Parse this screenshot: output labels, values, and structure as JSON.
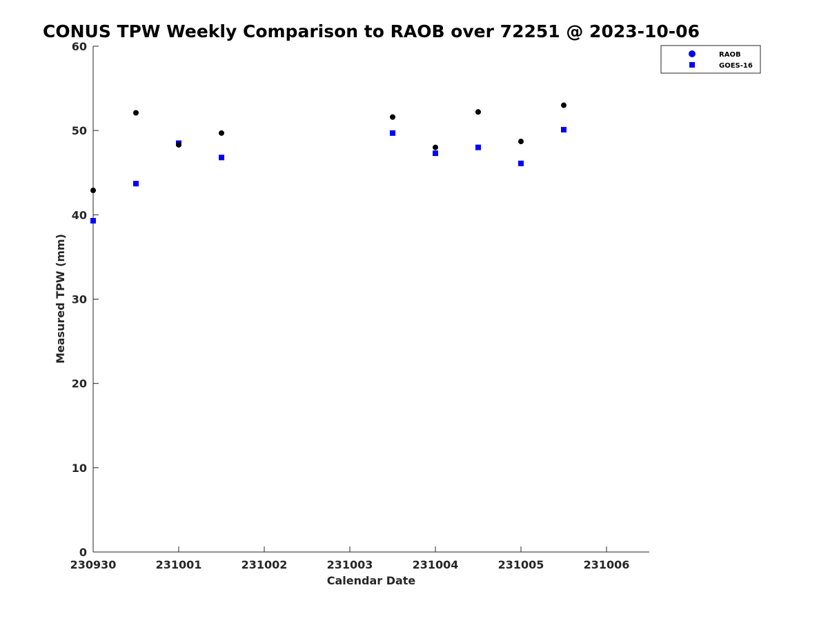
{
  "chart_data": {
    "type": "scatter",
    "title": "CONUS TPW Weekly Comparison to RAOB over 72251 @ 2023-10-06",
    "xlabel": "Calendar Date",
    "ylabel": "Measured TPW (mm)",
    "xlim": [
      0,
      6.5
    ],
    "ylim": [
      0,
      60
    ],
    "x_ticks": [
      0,
      1,
      2,
      3,
      4,
      5,
      6
    ],
    "x_tick_labels": [
      "230930",
      "231001",
      "231002",
      "231003",
      "231004",
      "231005",
      "231006"
    ],
    "y_ticks": [
      0,
      10,
      20,
      30,
      40,
      50,
      60
    ],
    "y_tick_labels": [
      "0",
      "10",
      "20",
      "30",
      "40",
      "50",
      "60"
    ],
    "grid": false,
    "legend_position": "top-right",
    "series": [
      {
        "name": "RAOB",
        "marker": "circle",
        "legend_color": "#0000ff",
        "point_color": "#000000",
        "x": [
          0,
          0.5,
          1,
          1.5,
          3.5,
          4,
          4.5,
          5,
          5.5
        ],
        "values": [
          42.9,
          52.1,
          48.3,
          49.7,
          51.6,
          48.0,
          52.2,
          48.7,
          53.0
        ]
      },
      {
        "name": "GOES-16",
        "marker": "square",
        "legend_color": "#0000ff",
        "point_color": "#0000ff",
        "x": [
          0,
          0.5,
          1,
          1.5,
          3.5,
          4,
          4.5,
          5,
          5.5
        ],
        "values": [
          39.3,
          43.7,
          48.5,
          46.8,
          49.7,
          47.3,
          48.0,
          46.1,
          50.1
        ]
      }
    ]
  }
}
